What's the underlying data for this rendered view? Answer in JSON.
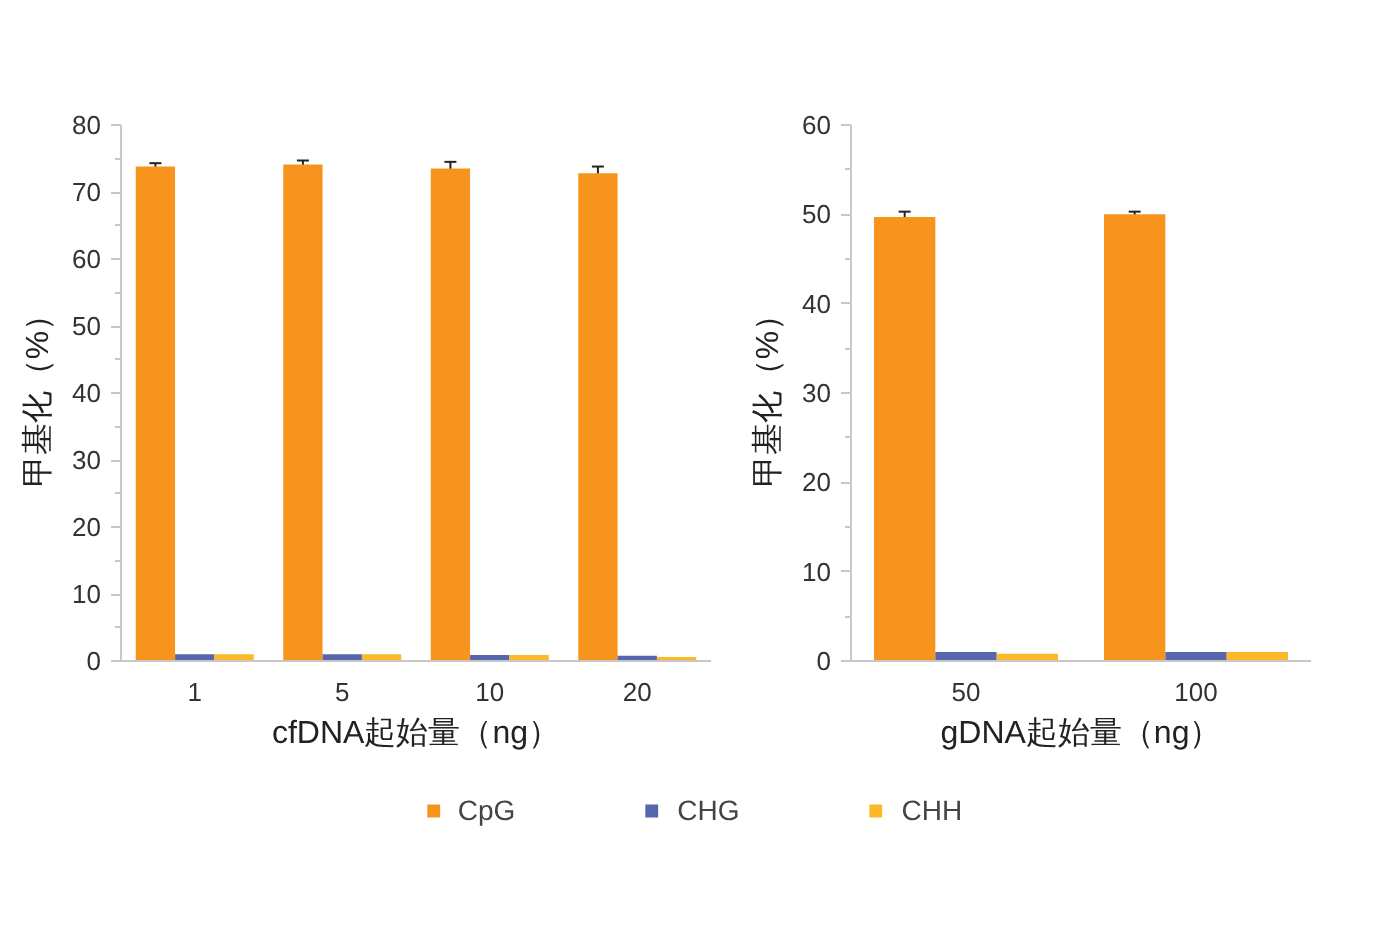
{
  "chart_data": [
    {
      "type": "bar",
      "xlabel": "cfDNA起始量（ng）",
      "ylabel": "甲基化（%）",
      "categories": [
        "1",
        "5",
        "10",
        "20"
      ],
      "ylim": [
        0,
        80
      ],
      "yticks": [
        0,
        10,
        20,
        30,
        40,
        50,
        60,
        70,
        80
      ],
      "grid": false,
      "legend": "bottom",
      "series": [
        {
          "name": "CpG",
          "color": "#f7941d",
          "values": [
            73.8,
            74.1,
            73.5,
            72.8
          ],
          "errors": [
            0.5,
            0.6,
            1.0,
            1.0
          ]
        },
        {
          "name": "CHG",
          "color": "#5566aa",
          "values": [
            1.0,
            1.0,
            0.9,
            0.8
          ]
        },
        {
          "name": "CHH",
          "color": "#fbb929",
          "values": [
            1.0,
            1.0,
            0.9,
            0.6
          ]
        }
      ]
    },
    {
      "type": "bar",
      "xlabel": "gDNA起始量（ng）",
      "ylabel": "甲基化（%）",
      "categories": [
        "50",
        "100"
      ],
      "ylim": [
        0,
        60
      ],
      "yticks": [
        0,
        10,
        20,
        30,
        40,
        50,
        60
      ],
      "grid": false,
      "legend": "bottom",
      "series": [
        {
          "name": "CpG",
          "color": "#f7941d",
          "values": [
            49.7,
            50.0
          ],
          "errors": [
            0.6,
            0.3
          ]
        },
        {
          "name": "CHG",
          "color": "#5566aa",
          "values": [
            1.0,
            1.0
          ]
        },
        {
          "name": "CHH",
          "color": "#fbb929",
          "values": [
            0.8,
            1.0
          ]
        }
      ]
    }
  ]
}
